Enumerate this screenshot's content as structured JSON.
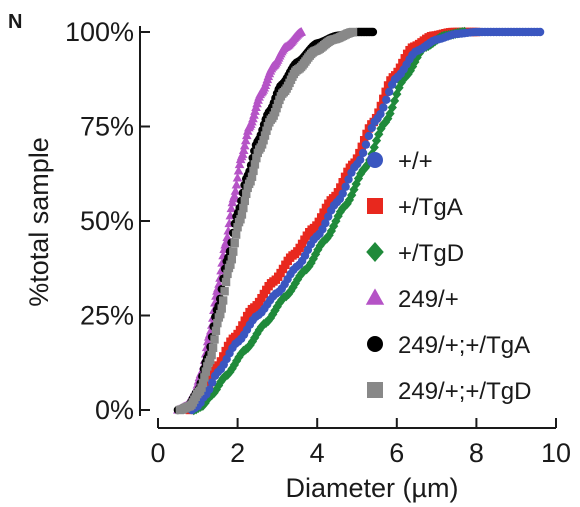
{
  "panel_label": "N",
  "chart_data": {
    "type": "scatter",
    "title": "",
    "xlabel": "Diameter (µm)",
    "ylabel": "%total sample",
    "xlim": [
      0,
      10
    ],
    "ylim": [
      0,
      100
    ],
    "x_ticks": [
      0,
      2,
      4,
      6,
      8,
      10
    ],
    "x_tick_labels": [
      "0",
      "2",
      "4",
      "6",
      "8",
      "10"
    ],
    "y_ticks": [
      0,
      25,
      50,
      75,
      100
    ],
    "y_tick_labels": [
      "0%",
      "25%",
      "50%",
      "75%",
      "100%"
    ],
    "grid": false,
    "legend_position": "right",
    "series": [
      {
        "name": "+/+",
        "color": "#3a56c0",
        "marker": "circle",
        "points": [
          [
            0.85,
            0
          ],
          [
            1.0,
            1
          ],
          [
            1.2,
            4
          ],
          [
            1.5,
            10
          ],
          [
            2.0,
            18
          ],
          [
            2.5,
            25
          ],
          [
            3.0,
            31
          ],
          [
            3.5,
            38
          ],
          [
            4.0,
            46
          ],
          [
            4.5,
            55
          ],
          [
            5.0,
            65
          ],
          [
            5.5,
            77
          ],
          [
            6.0,
            88
          ],
          [
            6.5,
            95
          ],
          [
            7.0,
            98
          ],
          [
            7.5,
            99.5
          ],
          [
            8.0,
            100
          ],
          [
            8.8,
            100
          ],
          [
            9.6,
            100
          ]
        ]
      },
      {
        "name": "+/TgA",
        "color": "#e8281e",
        "marker": "square",
        "points": [
          [
            0.8,
            0
          ],
          [
            0.95,
            1
          ],
          [
            1.15,
            4
          ],
          [
            1.45,
            11
          ],
          [
            1.9,
            19
          ],
          [
            2.4,
            27
          ],
          [
            2.9,
            34
          ],
          [
            3.4,
            41
          ],
          [
            3.9,
            48
          ],
          [
            4.4,
            56
          ],
          [
            4.9,
            65
          ],
          [
            5.4,
            76
          ],
          [
            5.9,
            88
          ],
          [
            6.4,
            96
          ],
          [
            6.9,
            99
          ],
          [
            7.4,
            100
          ],
          [
            8.0,
            100
          ]
        ]
      },
      {
        "name": "+/TgD",
        "color": "#1f8a3a",
        "marker": "diamond",
        "points": [
          [
            0.9,
            0
          ],
          [
            1.1,
            1
          ],
          [
            1.35,
            4
          ],
          [
            1.7,
            9
          ],
          [
            2.2,
            16
          ],
          [
            2.7,
            23
          ],
          [
            3.2,
            30
          ],
          [
            3.7,
            37
          ],
          [
            4.2,
            45
          ],
          [
            4.7,
            54
          ],
          [
            5.2,
            64
          ],
          [
            5.7,
            76
          ],
          [
            6.2,
            88
          ],
          [
            6.7,
            96
          ],
          [
            7.2,
            99
          ],
          [
            7.7,
            100
          ]
        ]
      },
      {
        "name": "249/+",
        "color": "#b553c6",
        "marker": "triangle",
        "points": [
          [
            0.5,
            0
          ],
          [
            0.7,
            1
          ],
          [
            0.9,
            4
          ],
          [
            1.1,
            10
          ],
          [
            1.3,
            20
          ],
          [
            1.5,
            32
          ],
          [
            1.7,
            44
          ],
          [
            1.9,
            56
          ],
          [
            2.1,
            67
          ],
          [
            2.3,
            75
          ],
          [
            2.6,
            84
          ],
          [
            2.9,
            91
          ],
          [
            3.2,
            96
          ],
          [
            3.6,
            100
          ]
        ]
      },
      {
        "name": "249/+;+/TgA",
        "color": "#000000",
        "marker": "circle",
        "points": [
          [
            0.5,
            0
          ],
          [
            0.75,
            1
          ],
          [
            1.0,
            5
          ],
          [
            1.25,
            14
          ],
          [
            1.5,
            27
          ],
          [
            1.75,
            40
          ],
          [
            2.0,
            52
          ],
          [
            2.25,
            62
          ],
          [
            2.5,
            71
          ],
          [
            2.8,
            79
          ],
          [
            3.1,
            86
          ],
          [
            3.5,
            92
          ],
          [
            4.0,
            97
          ],
          [
            4.5,
            99
          ],
          [
            5.0,
            100
          ],
          [
            5.4,
            100
          ]
        ]
      },
      {
        "name": "249/+;+/TgD",
        "color": "#888888",
        "marker": "square",
        "points": [
          [
            0.55,
            0
          ],
          [
            0.8,
            1
          ],
          [
            1.05,
            5
          ],
          [
            1.3,
            13
          ],
          [
            1.55,
            25
          ],
          [
            1.8,
            38
          ],
          [
            2.05,
            50
          ],
          [
            2.3,
            60
          ],
          [
            2.55,
            69
          ],
          [
            2.85,
            77
          ],
          [
            3.15,
            84
          ],
          [
            3.5,
            90
          ],
          [
            3.95,
            95
          ],
          [
            4.4,
            98
          ],
          [
            4.9,
            100
          ]
        ]
      }
    ]
  }
}
